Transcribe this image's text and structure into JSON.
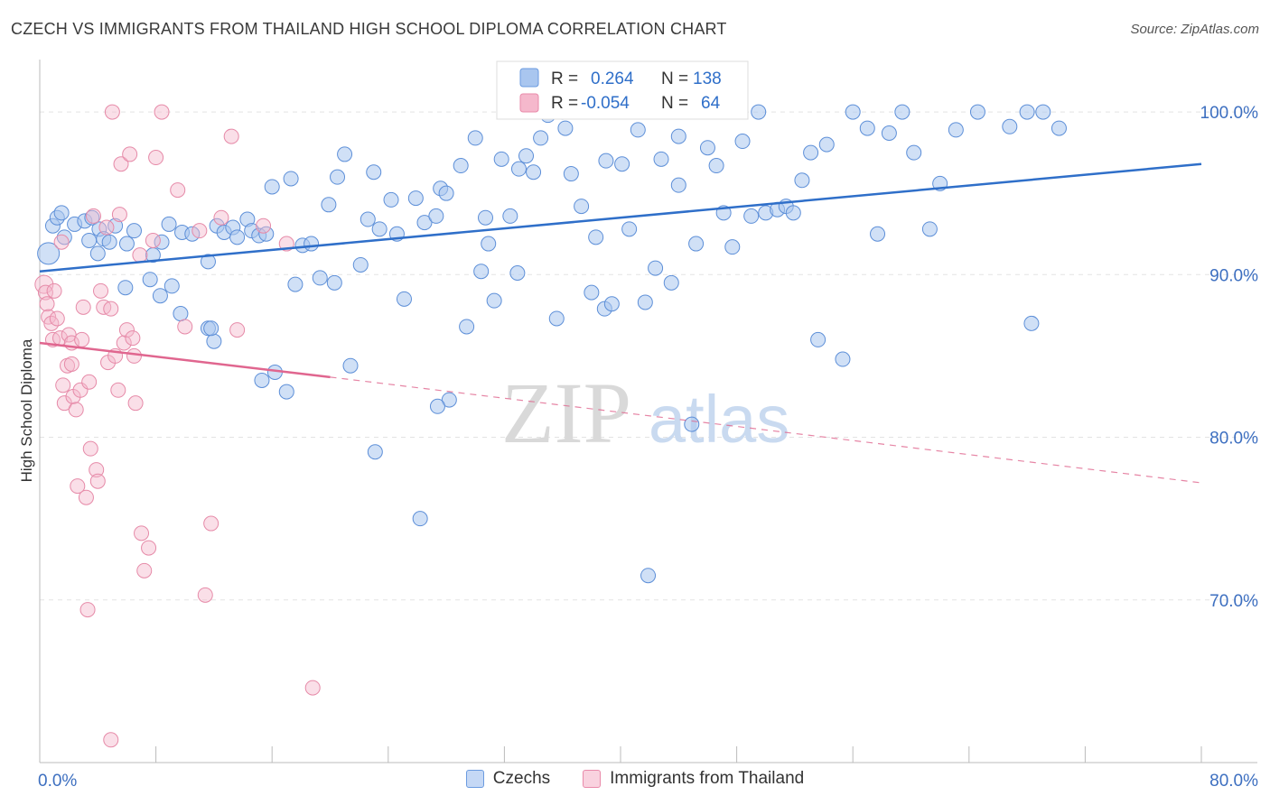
{
  "title": "CZECH VS IMMIGRANTS FROM THAILAND HIGH SCHOOL DIPLOMA CORRELATION CHART",
  "source": "Source: ZipAtlas.com",
  "watermark": {
    "zip": "ZIP",
    "atlas": "atlas"
  },
  "colors": {
    "blue": "#2f6fc9",
    "blue_fill": "#a9c6ef",
    "pink": "#e0668f",
    "pink_fill": "#f5b8cc",
    "axis_text": "#3d6fc0"
  },
  "chart_data": {
    "type": "scatter",
    "title": "CZECH VS IMMIGRANTS FROM THAILAND HIGH SCHOOL DIPLOMA CORRELATION CHART",
    "xlabel": "",
    "ylabel": "High School Diploma",
    "xlim": [
      0,
      80
    ],
    "ylim": [
      60,
      103
    ],
    "x_tick_labels": [
      {
        "value": 0,
        "label": "0.0%"
      },
      {
        "value": 80,
        "label": "80.0%"
      }
    ],
    "y_tick_labels": [
      {
        "value": 100,
        "label": "100.0%"
      },
      {
        "value": 90,
        "label": "90.0%"
      },
      {
        "value": 80,
        "label": "80.0%"
      },
      {
        "value": 70,
        "label": "70.0%"
      }
    ],
    "legend": [
      {
        "name": "Czechs",
        "R_label": "R =",
        "R": "0.264",
        "N_label": "N =",
        "N": "138"
      },
      {
        "name": "Immigrants from Thailand",
        "R_label": "R =",
        "R": "-0.054",
        "N_label": "N =",
        "N": "64"
      }
    ],
    "series": [
      {
        "name": "Czechs",
        "trend": {
          "x0": 0,
          "y0": 90.2,
          "x1": 80,
          "y1": 96.8
        },
        "points": [
          [
            0.6,
            91.3
          ],
          [
            0.9,
            93.0
          ],
          [
            1.2,
            93.5
          ],
          [
            1.5,
            93.8
          ],
          [
            2.4,
            93.1
          ],
          [
            1.7,
            92.3
          ],
          [
            3.1,
            93.3
          ],
          [
            3.6,
            93.5
          ],
          [
            4.1,
            92.8
          ],
          [
            5.2,
            93.0
          ],
          [
            3.4,
            92.1
          ],
          [
            4.0,
            91.3
          ],
          [
            4.4,
            92.2
          ],
          [
            4.8,
            92.0
          ],
          [
            6.0,
            91.9
          ],
          [
            6.5,
            92.7
          ],
          [
            7.8,
            91.2
          ],
          [
            8.4,
            92.0
          ],
          [
            8.9,
            93.1
          ],
          [
            9.8,
            92.6
          ],
          [
            10.5,
            92.5
          ],
          [
            11.6,
            90.8
          ],
          [
            12.2,
            93.0
          ],
          [
            12.7,
            92.6
          ],
          [
            13.3,
            92.9
          ],
          [
            13.6,
            92.3
          ],
          [
            14.3,
            93.4
          ],
          [
            14.6,
            92.7
          ],
          [
            15.1,
            92.4
          ],
          [
            16.0,
            95.4
          ],
          [
            15.6,
            92.5
          ],
          [
            17.3,
            95.9
          ],
          [
            17.6,
            89.4
          ],
          [
            18.1,
            91.8
          ],
          [
            18.7,
            91.9
          ],
          [
            19.3,
            89.8
          ],
          [
            19.9,
            94.3
          ],
          [
            20.3,
            89.5
          ],
          [
            21.0,
            97.4
          ],
          [
            21.4,
            84.4
          ],
          [
            22.1,
            90.6
          ],
          [
            22.6,
            93.4
          ],
          [
            23.1,
            79.1
          ],
          [
            23.4,
            92.8
          ],
          [
            24.2,
            94.6
          ],
          [
            24.6,
            92.5
          ],
          [
            25.1,
            88.5
          ],
          [
            25.9,
            94.7
          ],
          [
            26.5,
            93.2
          ],
          [
            27.3,
            93.6
          ],
          [
            27.6,
            95.3
          ],
          [
            28.2,
            82.3
          ],
          [
            29.0,
            96.7
          ],
          [
            29.4,
            86.8
          ],
          [
            30.0,
            98.4
          ],
          [
            30.4,
            90.2
          ],
          [
            30.9,
            91.9
          ],
          [
            31.3,
            88.4
          ],
          [
            31.8,
            97.1
          ],
          [
            32.4,
            93.6
          ],
          [
            32.9,
            90.1
          ],
          [
            33.5,
            97.3
          ],
          [
            34.0,
            96.3
          ],
          [
            34.5,
            98.4
          ],
          [
            35.0,
            99.8
          ],
          [
            35.6,
            87.3
          ],
          [
            36.2,
            99.0
          ],
          [
            36.6,
            96.2
          ],
          [
            37.3,
            94.2
          ],
          [
            38.0,
            88.9
          ],
          [
            38.3,
            92.3
          ],
          [
            38.9,
            87.9
          ],
          [
            39.4,
            88.2
          ],
          [
            40.1,
            96.8
          ],
          [
            40.6,
            92.8
          ],
          [
            41.2,
            98.9
          ],
          [
            41.7,
            88.3
          ],
          [
            42.4,
            90.4
          ],
          [
            42.8,
            97.1
          ],
          [
            43.5,
            89.5
          ],
          [
            44.0,
            95.5
          ],
          [
            44.9,
            80.8
          ],
          [
            45.2,
            91.9
          ],
          [
            46.0,
            97.8
          ],
          [
            46.6,
            96.7
          ],
          [
            47.1,
            93.8
          ],
          [
            47.7,
            91.7
          ],
          [
            48.4,
            98.2
          ],
          [
            49.0,
            93.6
          ],
          [
            49.5,
            100.0
          ],
          [
            50.0,
            93.8
          ],
          [
            50.8,
            94.0
          ],
          [
            51.4,
            94.2
          ],
          [
            51.9,
            93.8
          ],
          [
            52.5,
            95.8
          ],
          [
            53.1,
            97.5
          ],
          [
            53.6,
            86.0
          ],
          [
            54.2,
            98.0
          ],
          [
            55.3,
            84.8
          ],
          [
            56.0,
            100.0
          ],
          [
            57.0,
            99.0
          ],
          [
            57.7,
            92.5
          ],
          [
            58.5,
            98.7
          ],
          [
            59.4,
            100.0
          ],
          [
            60.2,
            97.5
          ],
          [
            61.3,
            92.8
          ],
          [
            62.0,
            95.6
          ],
          [
            63.1,
            98.9
          ],
          [
            64.6,
            100.0
          ],
          [
            66.8,
            99.1
          ],
          [
            68.0,
            100.0
          ],
          [
            68.3,
            87.0
          ],
          [
            69.1,
            100.0
          ],
          [
            70.2,
            99.0
          ],
          [
            12.0,
            85.9
          ],
          [
            11.6,
            86.7
          ],
          [
            11.8,
            86.7
          ],
          [
            17.0,
            82.8
          ],
          [
            15.3,
            83.5
          ],
          [
            16.2,
            84.0
          ],
          [
            9.7,
            87.6
          ],
          [
            8.3,
            88.7
          ],
          [
            7.6,
            89.7
          ],
          [
            5.9,
            89.2
          ],
          [
            9.1,
            89.3
          ],
          [
            26.2,
            75.0
          ],
          [
            41.9,
            71.5
          ],
          [
            20.5,
            96.0
          ],
          [
            23.0,
            96.3
          ],
          [
            28.0,
            95.0
          ],
          [
            36.0,
            100.0
          ],
          [
            33.0,
            96.5
          ],
          [
            39.0,
            97.0
          ],
          [
            44.0,
            98.5
          ],
          [
            30.7,
            93.5
          ],
          [
            27.4,
            81.9
          ]
        ]
      },
      {
        "name": "Immigrants from Thailand",
        "trend": {
          "x0": 0,
          "y0": 85.8,
          "x1": 20,
          "y1": 83.7,
          "dash_to_x": 80,
          "dash_to_y": 77.2
        },
        "points": [
          [
            0.3,
            89.4
          ],
          [
            0.4,
            88.9
          ],
          [
            0.5,
            88.2
          ],
          [
            0.6,
            87.4
          ],
          [
            0.8,
            87.0
          ],
          [
            0.9,
            86.0
          ],
          [
            1.0,
            89.0
          ],
          [
            1.2,
            87.3
          ],
          [
            1.4,
            86.1
          ],
          [
            1.6,
            83.2
          ],
          [
            1.7,
            82.1
          ],
          [
            1.9,
            84.4
          ],
          [
            2.0,
            86.3
          ],
          [
            2.2,
            85.8
          ],
          [
            2.3,
            82.5
          ],
          [
            2.5,
            81.7
          ],
          [
            2.6,
            77.0
          ],
          [
            2.8,
            82.9
          ],
          [
            2.9,
            86.0
          ],
          [
            3.0,
            88.0
          ],
          [
            3.2,
            76.3
          ],
          [
            3.4,
            83.4
          ],
          [
            3.5,
            79.3
          ],
          [
            3.7,
            93.6
          ],
          [
            3.9,
            78.0
          ],
          [
            4.0,
            77.3
          ],
          [
            4.2,
            89.0
          ],
          [
            4.4,
            88.0
          ],
          [
            4.6,
            92.9
          ],
          [
            4.7,
            84.6
          ],
          [
            4.9,
            87.9
          ],
          [
            5.0,
            100.0
          ],
          [
            5.2,
            85.0
          ],
          [
            5.4,
            82.9
          ],
          [
            5.5,
            93.7
          ],
          [
            5.6,
            96.8
          ],
          [
            5.8,
            85.8
          ],
          [
            6.0,
            86.6
          ],
          [
            6.2,
            97.4
          ],
          [
            6.4,
            86.1
          ],
          [
            6.6,
            82.1
          ],
          [
            6.9,
            91.2
          ],
          [
            7.0,
            74.1
          ],
          [
            7.2,
            71.8
          ],
          [
            7.5,
            73.2
          ],
          [
            7.8,
            92.1
          ],
          [
            8.0,
            97.2
          ],
          [
            8.4,
            100.0
          ],
          [
            9.5,
            95.2
          ],
          [
            10.0,
            86.8
          ],
          [
            11.0,
            92.7
          ],
          [
            11.4,
            70.3
          ],
          [
            11.8,
            74.7
          ],
          [
            12.5,
            93.5
          ],
          [
            13.2,
            98.5
          ],
          [
            13.6,
            86.6
          ],
          [
            15.4,
            93.0
          ],
          [
            17.0,
            91.9
          ],
          [
            18.8,
            64.6
          ],
          [
            4.9,
            61.4
          ],
          [
            3.3,
            69.4
          ],
          [
            2.2,
            84.5
          ],
          [
            6.5,
            85.0
          ],
          [
            1.5,
            92.0
          ]
        ]
      }
    ]
  }
}
